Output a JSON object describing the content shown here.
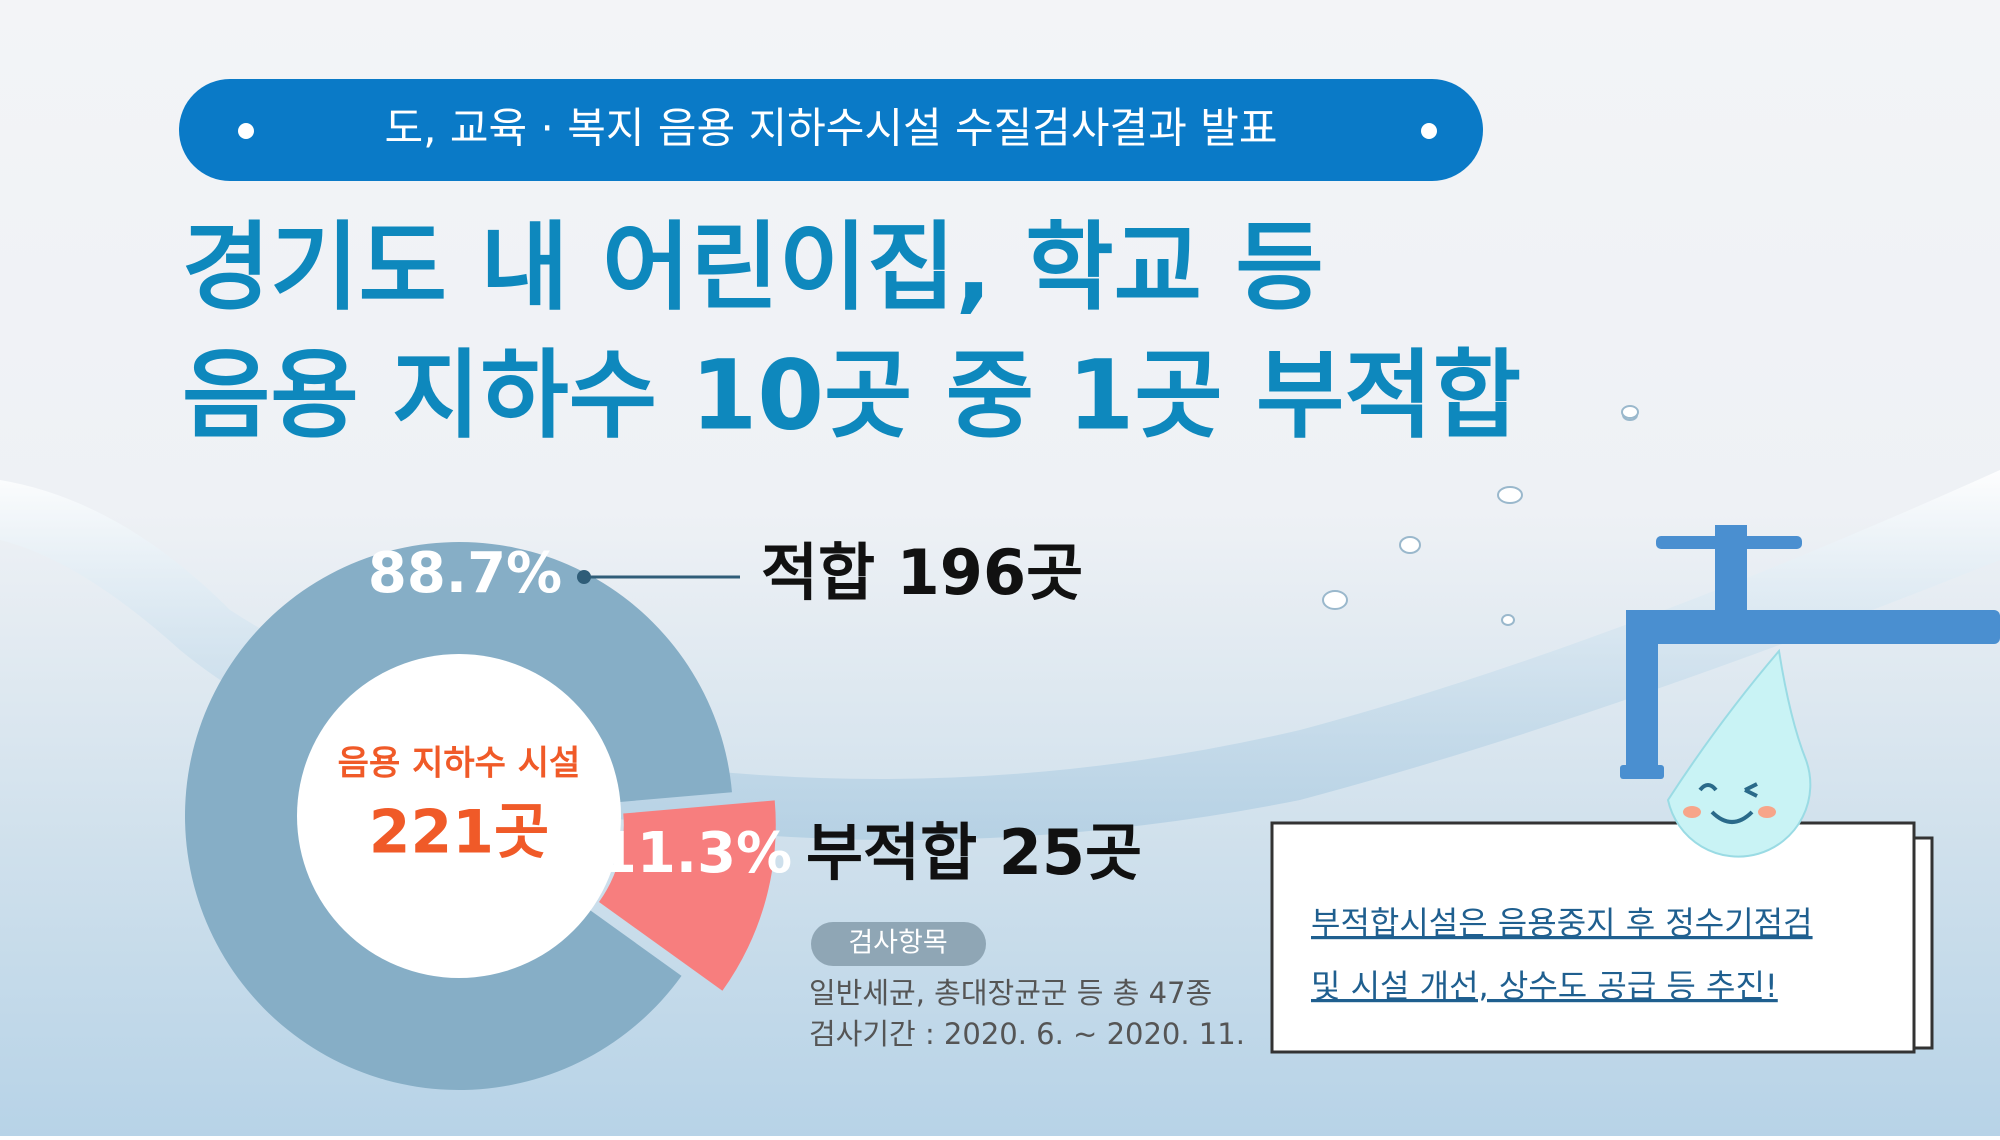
{
  "header": {
    "banner": "도, 교육 · 복지 음용 지하수시설 수질검사결과 발표",
    "title_lines": [
      "경기도 내 어린이집, 학교 등",
      "음용 지하수 10곳 중 1곳 부적합"
    ]
  },
  "chart_data": {
    "type": "donut",
    "center_title": "음용 지하수 시설",
    "center_value": "221곳",
    "categories": [
      "적합 196곳",
      "부적합 25곳"
    ],
    "values": [
      88.7,
      11.3
    ],
    "value_labels": [
      "88.7%",
      "11.3%"
    ],
    "colors": [
      "#86aec6",
      "#f77e7e"
    ]
  },
  "inspection": {
    "badge": "검사항목",
    "lines": [
      "일반세균, 총대장균군 등 총 47종",
      "검사기간 : 2020. 6. ~ 2020. 11."
    ]
  },
  "note": {
    "lines": [
      "부적합시설은 음용중지 후 정수기점검",
      "및 시설 개선, 상수도 공급 등 추진!"
    ]
  }
}
